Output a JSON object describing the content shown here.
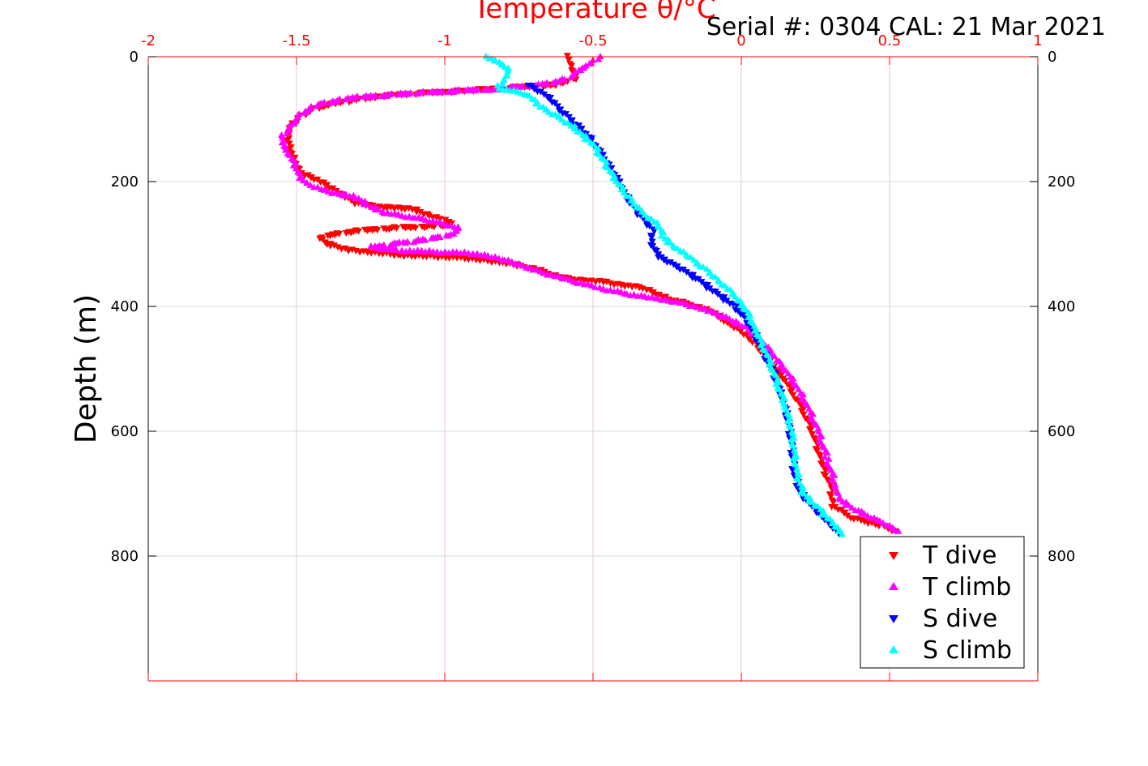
{
  "chart_data": {
    "type": "scatter",
    "title": "Temperature θ/°C",
    "subtitle": "Serial #: 0304  CAL: 21 Mar 2021",
    "xlabel": "Temperature θ/°C",
    "ylabel": "Depth (m)",
    "xlim": [
      -2,
      1
    ],
    "ylim": [
      0,
      1000
    ],
    "y_reversed": true,
    "x_axis_position": "top",
    "x_ticks": [
      "-2",
      "-1.5",
      "-1",
      "-0.5",
      "0",
      "0.5",
      "1"
    ],
    "x_tick_values": [
      -2,
      -1.5,
      -1,
      -0.5,
      0,
      0.5,
      1
    ],
    "y_ticks": [
      "0",
      "200",
      "400",
      "600",
      "800"
    ],
    "y_tick_values": [
      0,
      200,
      400,
      600,
      800
    ],
    "grid": true,
    "legend_position": "bottom-right",
    "colors": {
      "axis_top": "#ff0000",
      "axis_left": "#000000",
      "grid_x": "#f2c4c4",
      "grid_y": "#d9d9d9"
    },
    "series": [
      {
        "name": "T dive",
        "color": "#ff0000",
        "marker": "triangle-down",
        "points": [
          [
            -0.58,
            0
          ],
          [
            -0.57,
            20
          ],
          [
            -0.56,
            35
          ],
          [
            -0.62,
            45
          ],
          [
            -0.95,
            55
          ],
          [
            -1.2,
            62
          ],
          [
            -1.38,
            75
          ],
          [
            -1.45,
            85
          ],
          [
            -1.5,
            100
          ],
          [
            -1.52,
            115
          ],
          [
            -1.53,
            135
          ],
          [
            -1.51,
            160
          ],
          [
            -1.49,
            185
          ],
          [
            -1.42,
            200
          ],
          [
            -1.35,
            220
          ],
          [
            -1.3,
            235
          ],
          [
            -1.22,
            240
          ],
          [
            -1.1,
            245
          ],
          [
            -1.05,
            255
          ],
          [
            -1.0,
            262
          ],
          [
            -0.97,
            268
          ],
          [
            -1.05,
            272
          ],
          [
            -1.2,
            275
          ],
          [
            -1.35,
            282
          ],
          [
            -1.42,
            290
          ],
          [
            -1.4,
            300
          ],
          [
            -1.32,
            310
          ],
          [
            -1.15,
            318
          ],
          [
            -0.95,
            322
          ],
          [
            -0.8,
            330
          ],
          [
            -0.7,
            340
          ],
          [
            -0.6,
            355
          ],
          [
            -0.45,
            362
          ],
          [
            -0.32,
            372
          ],
          [
            -0.25,
            388
          ],
          [
            -0.15,
            400
          ],
          [
            -0.1,
            410
          ],
          [
            -0.05,
            425
          ],
          [
            0.0,
            440
          ],
          [
            0.05,
            460
          ],
          [
            0.1,
            490
          ],
          [
            0.15,
            520
          ],
          [
            0.2,
            560
          ],
          [
            0.24,
            600
          ],
          [
            0.27,
            650
          ],
          [
            0.3,
            690
          ],
          [
            0.31,
            720
          ],
          [
            0.38,
            740
          ],
          [
            0.48,
            752
          ],
          [
            0.52,
            760
          ]
        ]
      },
      {
        "name": "T climb",
        "color": "#ff00ff",
        "marker": "triangle-up",
        "points": [
          [
            -0.48,
            0
          ],
          [
            -0.52,
            15
          ],
          [
            -0.56,
            25
          ],
          [
            -0.58,
            35
          ],
          [
            -0.68,
            45
          ],
          [
            -0.85,
            52
          ],
          [
            -1.1,
            58
          ],
          [
            -1.3,
            65
          ],
          [
            -1.42,
            75
          ],
          [
            -1.48,
            90
          ],
          [
            -1.52,
            110
          ],
          [
            -1.55,
            130
          ],
          [
            -1.53,
            150
          ],
          [
            -1.5,
            180
          ],
          [
            -1.48,
            200
          ],
          [
            -1.4,
            215
          ],
          [
            -1.3,
            225
          ],
          [
            -1.25,
            240
          ],
          [
            -1.2,
            250
          ],
          [
            -1.1,
            258
          ],
          [
            -1.02,
            265
          ],
          [
            -0.95,
            275
          ],
          [
            -0.98,
            285
          ],
          [
            -1.05,
            292
          ],
          [
            -1.15,
            298
          ],
          [
            -1.25,
            305
          ],
          [
            -1.15,
            310
          ],
          [
            -0.9,
            315
          ],
          [
            -0.8,
            325
          ],
          [
            -0.72,
            338
          ],
          [
            -0.6,
            355
          ],
          [
            -0.48,
            370
          ],
          [
            -0.38,
            380
          ],
          [
            -0.28,
            388
          ],
          [
            -0.2,
            395
          ],
          [
            -0.12,
            405
          ],
          [
            -0.05,
            418
          ],
          [
            0.02,
            435
          ],
          [
            0.07,
            455
          ],
          [
            0.12,
            485
          ],
          [
            0.17,
            515
          ],
          [
            0.22,
            555
          ],
          [
            0.26,
            600
          ],
          [
            0.29,
            645
          ],
          [
            0.32,
            690
          ],
          [
            0.33,
            710
          ],
          [
            0.4,
            730
          ],
          [
            0.47,
            745
          ],
          [
            0.53,
            760
          ]
        ]
      },
      {
        "name": "S dive",
        "color": "#0000ff",
        "marker": "triangle-down",
        "points": [
          [
            -0.72,
            45
          ],
          [
            -0.65,
            65
          ],
          [
            -0.6,
            90
          ],
          [
            -0.55,
            110
          ],
          [
            -0.5,
            135
          ],
          [
            -0.46,
            165
          ],
          [
            -0.42,
            195
          ],
          [
            -0.38,
            230
          ],
          [
            -0.34,
            255
          ],
          [
            -0.3,
            275
          ],
          [
            -0.3,
            300
          ],
          [
            -0.28,
            320
          ],
          [
            -0.22,
            335
          ],
          [
            -0.15,
            355
          ],
          [
            -0.08,
            380
          ],
          [
            -0.02,
            400
          ],
          [
            0.03,
            430
          ],
          [
            0.07,
            470
          ],
          [
            0.11,
            510
          ],
          [
            0.14,
            550
          ],
          [
            0.16,
            590
          ],
          [
            0.17,
            630
          ],
          [
            0.18,
            670
          ],
          [
            0.2,
            700
          ],
          [
            0.26,
            730
          ],
          [
            0.3,
            750
          ],
          [
            0.33,
            765
          ]
        ]
      },
      {
        "name": "S climb",
        "color": "#00ffff",
        "marker": "triangle-up",
        "points": [
          [
            -0.86,
            0
          ],
          [
            -0.82,
            10
          ],
          [
            -0.78,
            20
          ],
          [
            -0.8,
            35
          ],
          [
            -0.82,
            50
          ],
          [
            -0.72,
            60
          ],
          [
            -0.68,
            80
          ],
          [
            -0.62,
            95
          ],
          [
            -0.56,
            115
          ],
          [
            -0.5,
            140
          ],
          [
            -0.46,
            170
          ],
          [
            -0.42,
            200
          ],
          [
            -0.38,
            225
          ],
          [
            -0.33,
            250
          ],
          [
            -0.28,
            270
          ],
          [
            -0.26,
            290
          ],
          [
            -0.22,
            305
          ],
          [
            -0.18,
            320
          ],
          [
            -0.12,
            340
          ],
          [
            -0.07,
            360
          ],
          [
            -0.02,
            385
          ],
          [
            0.02,
            410
          ],
          [
            0.05,
            440
          ],
          [
            0.09,
            480
          ],
          [
            0.12,
            520
          ],
          [
            0.15,
            560
          ],
          [
            0.17,
            600
          ],
          [
            0.18,
            640
          ],
          [
            0.19,
            675
          ],
          [
            0.21,
            700
          ],
          [
            0.27,
            728
          ],
          [
            0.31,
            748
          ],
          [
            0.34,
            765
          ]
        ]
      }
    ]
  }
}
